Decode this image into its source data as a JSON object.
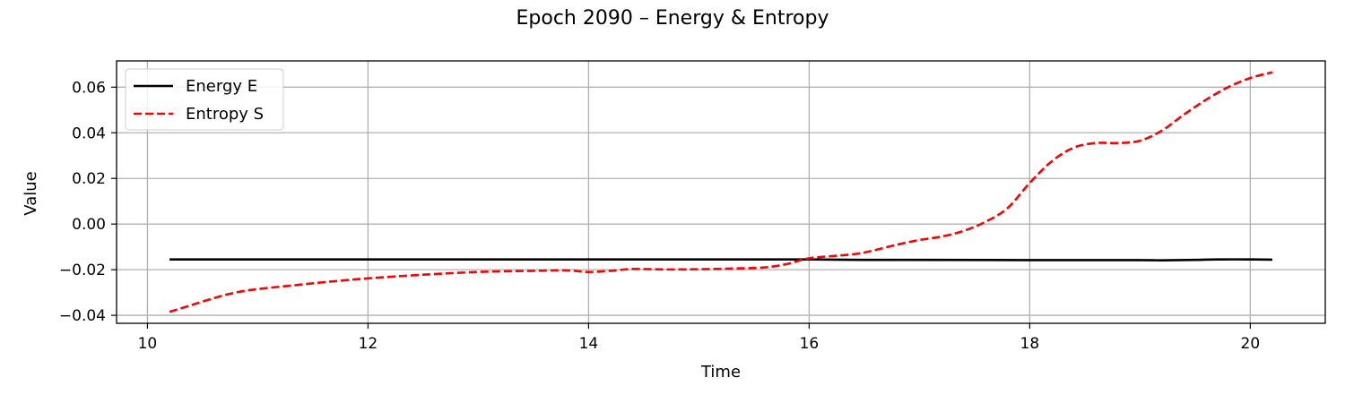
{
  "chart_data": {
    "type": "line",
    "title": "Epoch 2090 – Energy & Entropy",
    "xlabel": "Time",
    "ylabel": "Value",
    "xlim": [
      9.72,
      20.68
    ],
    "ylim": [
      -0.0435,
      0.0715
    ],
    "xticks": [
      10,
      12,
      14,
      16,
      18,
      20
    ],
    "yticks": [
      -0.04,
      -0.02,
      0.0,
      0.02,
      0.04,
      0.06
    ],
    "xtick_labels": [
      "10",
      "12",
      "14",
      "16",
      "18",
      "20"
    ],
    "ytick_labels": [
      "−0.04",
      "−0.02",
      "0.00",
      "0.02",
      "0.04",
      "0.06"
    ],
    "grid": true,
    "legend_position": "top-left",
    "series": [
      {
        "name": "Energy E",
        "color": "#000000",
        "style": "solid",
        "x": [
          10.2,
          11.0,
          12.0,
          13.0,
          14.0,
          15.0,
          16.0,
          16.5,
          17.0,
          18.0,
          19.0,
          19.2,
          19.5,
          19.7,
          20.0,
          20.2
        ],
        "y": [
          -0.0155,
          -0.0155,
          -0.0155,
          -0.0155,
          -0.0155,
          -0.0155,
          -0.0155,
          -0.0157,
          -0.0157,
          -0.0158,
          -0.0158,
          -0.0159,
          -0.0157,
          -0.0155,
          -0.0155,
          -0.0156
        ]
      },
      {
        "name": "Entropy S",
        "color": "#ff0000",
        "style": "dashed",
        "x": [
          10.2,
          10.4,
          10.6,
          10.8,
          11.0,
          11.3,
          11.6,
          12.0,
          12.5,
          13.0,
          13.5,
          13.8,
          14.0,
          14.2,
          14.4,
          14.7,
          15.0,
          15.3,
          15.6,
          15.8,
          16.0,
          16.3,
          16.5,
          16.8,
          17.0,
          17.2,
          17.4,
          17.6,
          17.8,
          18.0,
          18.2,
          18.4,
          18.6,
          18.8,
          19.0,
          19.2,
          19.4,
          19.6,
          19.8,
          20.0,
          20.2
        ],
        "y": [
          -0.0385,
          -0.0355,
          -0.0325,
          -0.03,
          -0.0285,
          -0.027,
          -0.0255,
          -0.0238,
          -0.0222,
          -0.021,
          -0.0205,
          -0.0203,
          -0.021,
          -0.0205,
          -0.0197,
          -0.0199,
          -0.0198,
          -0.0195,
          -0.019,
          -0.0175,
          -0.015,
          -0.0137,
          -0.0125,
          -0.009,
          -0.007,
          -0.0055,
          -0.003,
          0.001,
          0.007,
          0.018,
          0.0275,
          0.0335,
          0.0355,
          0.0355,
          0.0365,
          0.041,
          0.048,
          0.0545,
          0.06,
          0.064,
          0.0665
        ]
      }
    ]
  }
}
